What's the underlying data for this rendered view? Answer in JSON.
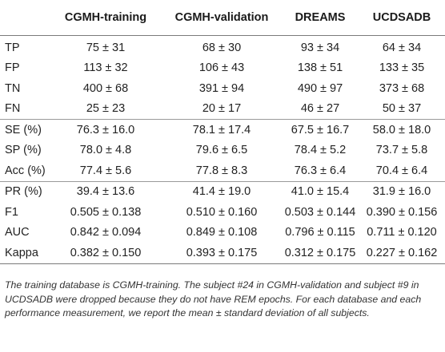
{
  "table": {
    "headers": [
      "",
      "CGMH-training",
      "CGMH-validation",
      "DREAMS",
      "UCDSADB"
    ],
    "rows": [
      [
        "TP",
        "75 ± 31",
        "68 ± 30",
        "93 ± 34",
        "64 ± 34"
      ],
      [
        "FP",
        "113 ± 32",
        "106 ± 43",
        "138 ± 51",
        "133 ± 35"
      ],
      [
        "TN",
        "400 ± 68",
        "391 ± 94",
        "490 ± 97",
        "373 ± 68"
      ],
      [
        "FN",
        "25 ± 23",
        "20 ± 17",
        "46 ± 27",
        "50 ± 37"
      ],
      [
        "SE (%)",
        "76.3 ± 16.0",
        "78.1 ± 17.4",
        "67.5 ± 16.7",
        "58.0 ± 18.0"
      ],
      [
        "SP (%)",
        "78.0 ± 4.8",
        "79.6 ± 6.5",
        "78.4 ± 5.2",
        "73.7 ± 5.8"
      ],
      [
        "Acc (%)",
        "77.4 ± 5.6",
        "77.8 ± 8.3",
        "76.3 ± 6.4",
        "70.4 ± 6.4"
      ],
      [
        "PR (%)",
        "39.4 ± 13.6",
        "41.4 ± 19.0",
        "41.0 ± 15.4",
        "31.9 ± 16.0"
      ],
      [
        "F1",
        "0.505 ± 0.138",
        "0.510 ± 0.160",
        "0.503 ± 0.144",
        "0.390 ± 0.156"
      ],
      [
        "AUC",
        "0.842 ± 0.094",
        "0.849 ± 0.108",
        "0.796 ± 0.115",
        "0.711 ± 0.120"
      ],
      [
        "Kappa",
        "0.382 ± 0.150",
        "0.393 ± 0.175",
        "0.312 ± 0.175",
        "0.227 ± 0.162"
      ]
    ]
  },
  "footnote": "The training database is CGMH-training. The subject #24 in CGMH-validation and subject #9 in UCDSADB were dropped because they do not have REM epochs. For each database and each performance measurement, we report the mean ± standard deviation of all subjects."
}
